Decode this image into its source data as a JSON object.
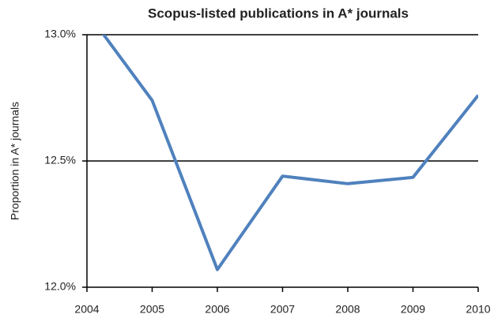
{
  "chart_data": {
    "type": "line",
    "title": "Scopus-listed publications in A* journals",
    "y_label": "Proportion in A* journals",
    "x": [
      2004,
      2005,
      2006,
      2007,
      2008,
      2009,
      2010
    ],
    "values": [
      13.09,
      12.74,
      12.07,
      12.44,
      12.41,
      12.435,
      12.76
    ],
    "color": "#4f81bd",
    "xlim": [
      2004,
      2010
    ],
    "xticks": [
      2004,
      2005,
      2006,
      2007,
      2008,
      2009,
      2010
    ],
    "ylim": [
      12.0,
      13.0
    ],
    "yticks": [
      {
        "value": 12.0,
        "label": "12.0%"
      },
      {
        "value": 12.5,
        "label": "12.5%"
      },
      {
        "value": 13.0,
        "label": "13.0%"
      }
    ],
    "grid": true
  }
}
